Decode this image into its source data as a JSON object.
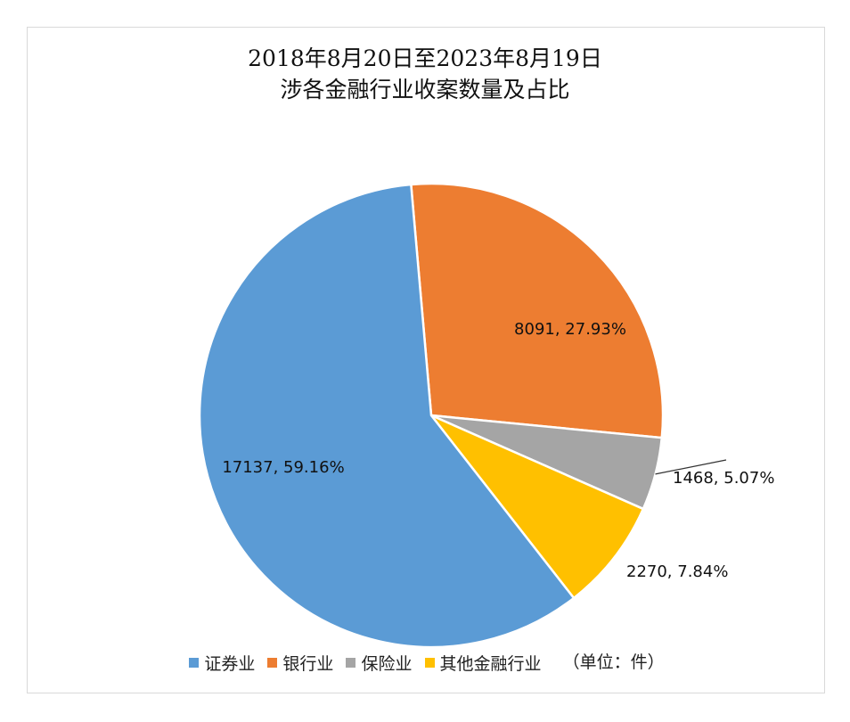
{
  "chart_data": {
    "type": "pie",
    "title_line1": "2018年8月20日至2023年8月19日",
    "title_line2": "涉各金融行业收案数量及占比",
    "unit_note": "（单位：件）",
    "slices": [
      {
        "name": "证券业",
        "value": 17137,
        "percent": "59.16%",
        "label": "17137, 59.16%",
        "color": "#5b9bd5"
      },
      {
        "name": "银行业",
        "value": 8091,
        "percent": "27.93%",
        "label": "8091, 27.93%",
        "color": "#ed7d31"
      },
      {
        "name": "保险业",
        "value": 1468,
        "percent": "5.07%",
        "label": "1468, 5.07%",
        "color": "#a5a5a5"
      },
      {
        "name": "其他金融行业",
        "value": 2270,
        "percent": "7.84%",
        "label": "2270, 7.84%",
        "color": "#ffc000"
      }
    ],
    "legend_order": [
      1,
      2,
      3,
      4
    ],
    "legend_position": "bottom"
  }
}
